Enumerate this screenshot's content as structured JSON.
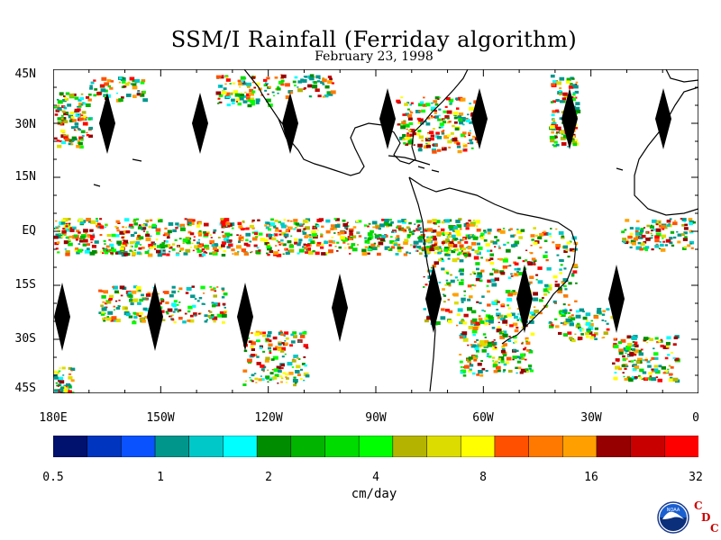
{
  "title": "SSM/I Rainfall (Ferriday algorithm)",
  "subtitle": "February 23, 1998",
  "lat_labels": [
    "45N",
    "30N",
    "15N",
    "EQ",
    "15S",
    "30S",
    "45S"
  ],
  "lon_labels": [
    "180E",
    "150W",
    "120W",
    "90W",
    "60W",
    "30W",
    "0"
  ],
  "colorbar": {
    "colors": [
      "#00116e",
      "#0035bf",
      "#0b52ff",
      "#00968c",
      "#00c8c8",
      "#00ffff",
      "#008c00",
      "#00b400",
      "#00dc00",
      "#00ff00",
      "#b4b400",
      "#dcdc00",
      "#ffff00",
      "#ff5000",
      "#ff7800",
      "#ffa000",
      "#960000",
      "#c80000",
      "#ff0000"
    ],
    "tick_labels": [
      "0.5",
      "1",
      "2",
      "4",
      "8",
      "16",
      "32"
    ],
    "units": "cm/day"
  },
  "logo": {
    "icon": "noaa-logo",
    "text": "NOAA"
  },
  "org_mark": {
    "c1": "C",
    "d": "D",
    "c2": "C"
  }
}
